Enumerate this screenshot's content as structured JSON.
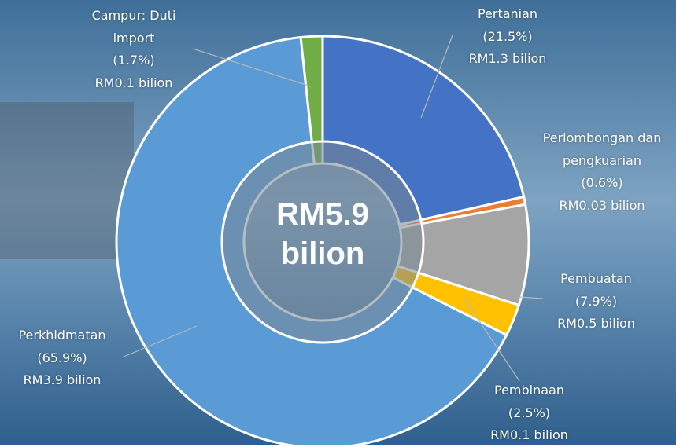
{
  "chart_data": {
    "type": "donut",
    "center_label": "RM5.9 bilion",
    "categories": [
      "Pertanian",
      "Perlombongan dan pengkuarian",
      "Pembuatan",
      "Pembinaan",
      "Perkhidmatan",
      "Campur: Duti import"
    ],
    "values": [
      21.5,
      0.6,
      7.9,
      2.5,
      65.9,
      1.7
    ],
    "value_labels": [
      "(21.5%)",
      "(0.6%)",
      "(7.9%)",
      "(2.5%)",
      "(65.9%)",
      "(1.7%)"
    ],
    "amount_labels": [
      "RM1.3 bilion",
      "RM0.03 bilion",
      "RM0.5 bilion",
      "RM0.1 bilion",
      "RM3.9 bilion",
      "RM0.1 bilion"
    ],
    "colors": [
      "#4472c4",
      "#ed7d31",
      "#a5a5a5",
      "#ffc000",
      "#5b9bd5",
      "#70ad47"
    ]
  }
}
